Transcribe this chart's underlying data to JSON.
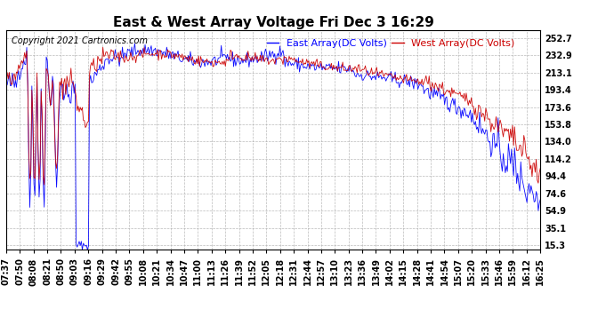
{
  "title": "East & West Array Voltage Fri Dec 3 16:29",
  "copyright": "Copyright 2021 Cartronics.com",
  "legend_east": "East Array(DC Volts)",
  "legend_west": "West Array(DC Volts)",
  "east_color": "#0000ff",
  "west_color": "#cc0000",
  "background_color": "#ffffff",
  "grid_color": "#aaaaaa",
  "plot_bg_color": "#ffffff",
  "yticks": [
    15.3,
    35.1,
    54.9,
    74.6,
    94.4,
    114.2,
    134.0,
    153.8,
    173.6,
    193.4,
    213.1,
    232.9,
    252.7
  ],
  "ylim": [
    10.0,
    262.0
  ],
  "xtick_labels": [
    "07:37",
    "07:50",
    "08:08",
    "08:21",
    "08:50",
    "09:03",
    "09:16",
    "09:29",
    "09:42",
    "09:55",
    "10:08",
    "10:21",
    "10:34",
    "10:47",
    "11:00",
    "11:13",
    "11:26",
    "11:39",
    "11:52",
    "12:05",
    "12:18",
    "12:31",
    "12:44",
    "12:57",
    "13:10",
    "13:23",
    "13:36",
    "13:49",
    "14:02",
    "14:15",
    "14:28",
    "14:41",
    "14:54",
    "15:07",
    "15:20",
    "15:33",
    "15:46",
    "15:59",
    "16:12",
    "16:25"
  ],
  "title_fontsize": 11,
  "legend_fontsize": 8,
  "tick_fontsize": 7,
  "copyright_fontsize": 7
}
